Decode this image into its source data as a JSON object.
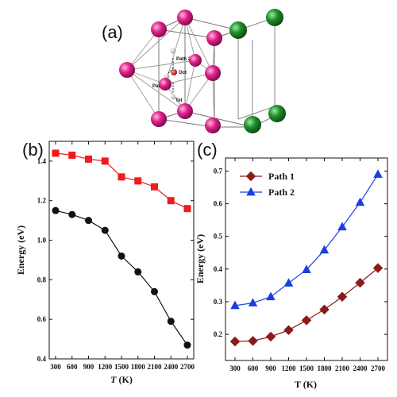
{
  "panels": {
    "a": "(a)",
    "b": "(b)",
    "c": "(c)"
  },
  "structure_labels": {
    "path2": "Path 2",
    "path1": "Path 1",
    "oct": "Oct",
    "tet": "Tet"
  },
  "colors": {
    "pink_atom": "#e0228a",
    "green_atom": "#1f8f2a",
    "b_red": "#ee1c1c",
    "b_black": "#111111",
    "c_path1": "#8b1a1a",
    "c_path2": "#1a3fe0"
  },
  "chart_data": [
    {
      "type": "line",
      "panel": "(b)",
      "x": [
        300,
        600,
        900,
        1200,
        1500,
        1800,
        2100,
        2400,
        2700
      ],
      "xticklabels": [
        "300",
        "600",
        "900",
        "1200",
        "1500",
        "1800",
        "2100",
        "2400",
        "2700"
      ],
      "xlabel_italic": "T",
      "xlabel_unit": "(K)",
      "ylabel": "Energy (eV)",
      "ylim": [
        0.4,
        1.5
      ],
      "yticks": [
        0.4,
        0.6,
        0.8,
        1.0,
        1.2,
        1.4
      ],
      "yticklabels": [
        "0.4",
        "0.6",
        "0.8",
        "1.0",
        "1.2",
        "1.4"
      ],
      "legend": "none",
      "grid": false,
      "series": [
        {
          "marker": "square",
          "color": "#ee1c1c",
          "values": [
            1.44,
            1.43,
            1.41,
            1.4,
            1.32,
            1.3,
            1.27,
            1.2,
            1.16
          ]
        },
        {
          "marker": "circle",
          "color": "#111111",
          "values": [
            1.15,
            1.13,
            1.1,
            1.05,
            0.92,
            0.84,
            0.74,
            0.59,
            0.47
          ]
        }
      ]
    },
    {
      "type": "line",
      "panel": "(c)",
      "x": [
        300,
        600,
        900,
        1200,
        1500,
        1800,
        2100,
        2400,
        2700
      ],
      "xticklabels": [
        "300",
        "600",
        "900",
        "1200",
        "1500",
        "1800",
        "2100",
        "2400",
        "2700"
      ],
      "xlabel": "T (K)",
      "ylabel": "Energy (eV)",
      "ylim": [
        0.12,
        0.74
      ],
      "yticks": [
        0.2,
        0.3,
        0.4,
        0.5,
        0.6,
        0.7
      ],
      "yticklabels": [
        "0.2",
        "0.3",
        "0.4",
        "0.5",
        "0.6",
        "0.7"
      ],
      "legend": "top-left",
      "grid": false,
      "series": [
        {
          "name": "Path 1",
          "marker": "diamond",
          "color": "#8b1a1a",
          "values": [
            0.178,
            0.18,
            0.193,
            0.213,
            0.243,
            0.276,
            0.315,
            0.358,
            0.403
          ]
        },
        {
          "name": "Path 2",
          "marker": "triangle",
          "color": "#1a3fe0",
          "values": [
            0.288,
            0.296,
            0.315,
            0.357,
            0.398,
            0.458,
            0.529,
            0.604,
            0.69
          ]
        }
      ]
    }
  ]
}
